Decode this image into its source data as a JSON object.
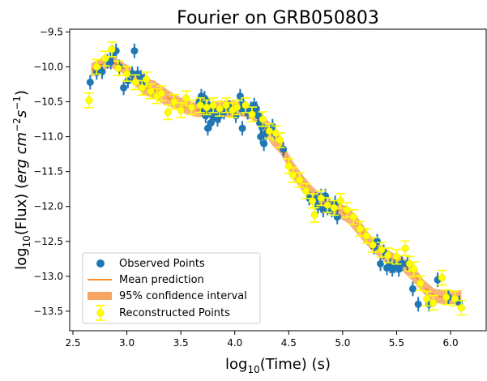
{
  "chart_data": {
    "type": "scatter",
    "title": "Fourier on GRB050803",
    "xlabel": {
      "prefix": "log",
      "sub": "10",
      "rest": "(Time) (s)"
    },
    "ylabel": {
      "prefix": "log",
      "sub": "10",
      "middle": "(Flux) (",
      "italic": "erg cm",
      "sup1": "−2",
      "s": "s",
      "sup2": "−1",
      "close": ")"
    },
    "xlim": [
      2.47,
      6.33
    ],
    "ylim": [
      -13.78,
      -9.46
    ],
    "xticks": [
      2.5,
      3.0,
      3.5,
      4.0,
      4.5,
      5.0,
      5.5,
      6.0
    ],
    "xtick_labels": [
      "2.5",
      "3.0",
      "3.5",
      "4.0",
      "4.5",
      "5.0",
      "5.5",
      "6.0"
    ],
    "yticks": [
      -9.5,
      -10.0,
      -10.5,
      -11.0,
      -11.5,
      -12.0,
      -12.5,
      -13.0,
      -13.5
    ],
    "ytick_labels": [
      "−9.5",
      "−10.0",
      "−10.5",
      "−11.0",
      "−11.5",
      "−12.0",
      "−12.5",
      "−13.0",
      "−13.5"
    ],
    "grid": false,
    "legend_position": "lower-left",
    "colors": {
      "observed": "#1f77b4",
      "mean": "#ff7f0e",
      "ci": "#f5a562",
      "reconstructed": "#ffff00",
      "recon_edge": "#d8d800"
    },
    "series": [
      {
        "name": "Observed Points",
        "points": [
          [
            2.66,
            -10.22
          ],
          [
            2.72,
            -10.08
          ],
          [
            2.77,
            -10.07
          ],
          [
            2.82,
            -9.92
          ],
          [
            2.85,
            -9.93
          ],
          [
            2.87,
            -9.8
          ],
          [
            2.9,
            -9.77
          ],
          [
            2.93,
            -10.0
          ],
          [
            2.97,
            -10.3
          ],
          [
            3.01,
            -10.2
          ],
          [
            3.05,
            -10.1
          ],
          [
            3.07,
            -9.77
          ],
          [
            3.1,
            -10.1
          ],
          [
            3.13,
            -10.15
          ],
          [
            3.16,
            -10.2
          ],
          [
            3.67,
            -10.5
          ],
          [
            3.69,
            -10.42
          ],
          [
            3.7,
            -10.6
          ],
          [
            3.71,
            -10.58
          ],
          [
            3.72,
            -10.45
          ],
          [
            3.73,
            -10.7
          ],
          [
            3.74,
            -10.65
          ],
          [
            3.75,
            -10.88
          ],
          [
            3.76,
            -10.55
          ],
          [
            3.77,
            -10.62
          ],
          [
            3.78,
            -10.8
          ],
          [
            3.79,
            -10.68
          ],
          [
            3.8,
            -10.72
          ],
          [
            3.82,
            -10.66
          ],
          [
            3.84,
            -10.75
          ],
          [
            3.86,
            -10.7
          ],
          [
            3.9,
            -10.65
          ],
          [
            3.95,
            -10.58
          ],
          [
            4.01,
            -10.7
          ],
          [
            4.05,
            -10.42
          ],
          [
            4.06,
            -10.6
          ],
          [
            4.07,
            -10.88
          ],
          [
            4.08,
            -10.55
          ],
          [
            4.1,
            -10.6
          ],
          [
            4.12,
            -10.65
          ],
          [
            4.15,
            -10.6
          ],
          [
            4.18,
            -10.55
          ],
          [
            4.2,
            -10.6
          ],
          [
            4.22,
            -10.7
          ],
          [
            4.23,
            -10.8
          ],
          [
            4.24,
            -11.0
          ],
          [
            4.25,
            -10.85
          ],
          [
            4.27,
            -11.1
          ],
          [
            4.29,
            -10.95
          ],
          [
            4.35,
            -10.85
          ],
          [
            4.37,
            -10.95
          ],
          [
            4.45,
            -11.18
          ],
          [
            4.69,
            -11.88
          ],
          [
            4.75,
            -11.9
          ],
          [
            4.77,
            -12.0
          ],
          [
            4.8,
            -11.85
          ],
          [
            4.82,
            -12.05
          ],
          [
            4.84,
            -11.85
          ],
          [
            4.86,
            -12.02
          ],
          [
            4.88,
            -12.0
          ],
          [
            4.9,
            -12.05
          ],
          [
            4.93,
            -11.95
          ],
          [
            4.95,
            -12.15
          ],
          [
            5.29,
            -12.58
          ],
          [
            5.32,
            -12.5
          ],
          [
            5.35,
            -12.82
          ],
          [
            5.38,
            -12.65
          ],
          [
            5.41,
            -12.88
          ],
          [
            5.44,
            -12.85
          ],
          [
            5.46,
            -12.9
          ],
          [
            5.48,
            -12.85
          ],
          [
            5.52,
            -12.9
          ],
          [
            5.55,
            -12.82
          ],
          [
            5.6,
            -12.82
          ],
          [
            5.65,
            -13.18
          ],
          [
            5.7,
            -13.4
          ],
          [
            5.8,
            -13.4
          ],
          [
            5.88,
            -13.05
          ],
          [
            5.98,
            -13.3
          ],
          [
            6.08,
            -13.38
          ]
        ]
      },
      {
        "name": "Mean prediction",
        "points": [
          [
            2.67,
            -10.05
          ],
          [
            2.75,
            -9.97
          ],
          [
            2.85,
            -9.92
          ],
          [
            2.95,
            -10.0
          ],
          [
            3.05,
            -10.12
          ],
          [
            3.15,
            -10.28
          ],
          [
            3.25,
            -10.32
          ],
          [
            3.35,
            -10.42
          ],
          [
            3.45,
            -10.5
          ],
          [
            3.55,
            -10.58
          ],
          [
            3.65,
            -10.62
          ],
          [
            3.75,
            -10.62
          ],
          [
            3.85,
            -10.6
          ],
          [
            3.95,
            -10.6
          ],
          [
            4.05,
            -10.6
          ],
          [
            4.15,
            -10.65
          ],
          [
            4.22,
            -10.72
          ],
          [
            4.28,
            -10.85
          ],
          [
            4.35,
            -10.98
          ],
          [
            4.42,
            -11.12
          ],
          [
            4.48,
            -11.3
          ],
          [
            4.55,
            -11.5
          ],
          [
            4.62,
            -11.65
          ],
          [
            4.7,
            -11.8
          ],
          [
            4.78,
            -11.9
          ],
          [
            4.86,
            -11.98
          ],
          [
            4.95,
            -12.05
          ],
          [
            5.05,
            -12.12
          ],
          [
            5.15,
            -12.3
          ],
          [
            5.25,
            -12.5
          ],
          [
            5.35,
            -12.65
          ],
          [
            5.45,
            -12.75
          ],
          [
            5.55,
            -12.82
          ],
          [
            5.65,
            -12.95
          ],
          [
            5.75,
            -13.15
          ],
          [
            5.85,
            -13.28
          ],
          [
            5.95,
            -13.3
          ],
          [
            6.05,
            -13.3
          ],
          [
            6.1,
            -13.3
          ]
        ]
      },
      {
        "name": "95% confidence interval",
        "halfwidth": [
          0.1,
          0.09,
          0.09,
          0.08,
          0.1,
          0.12,
          0.13,
          0.12,
          0.1,
          0.1,
          0.1,
          0.1,
          0.12,
          0.12,
          0.1,
          0.1,
          0.1,
          0.12,
          0.15,
          0.12,
          0.1,
          0.12,
          0.12,
          0.12,
          0.1,
          0.1,
          0.1,
          0.12,
          0.12,
          0.1,
          0.1,
          0.1,
          0.1,
          0.12,
          0.1,
          0.1,
          0.1,
          0.1,
          0.1
        ]
      },
      {
        "name": "Reconstructed Points",
        "points": [
          [
            2.65,
            -10.48
          ],
          [
            2.72,
            -10.0
          ],
          [
            2.8,
            -9.88
          ],
          [
            2.86,
            -9.75
          ],
          [
            2.92,
            -10.02
          ],
          [
            3.0,
            -10.1
          ],
          [
            3.08,
            -10.22
          ],
          [
            3.14,
            -10.3
          ],
          [
            3.18,
            -10.18
          ],
          [
            3.22,
            -10.35
          ],
          [
            3.28,
            -10.42
          ],
          [
            3.32,
            -10.38
          ],
          [
            3.38,
            -10.65
          ],
          [
            3.44,
            -10.5
          ],
          [
            3.5,
            -10.62
          ],
          [
            3.55,
            -10.45
          ],
          [
            3.6,
            -10.58
          ],
          [
            3.68,
            -10.55
          ],
          [
            3.74,
            -10.58
          ],
          [
            3.8,
            -10.55
          ],
          [
            3.86,
            -10.6
          ],
          [
            3.92,
            -10.55
          ],
          [
            3.98,
            -10.62
          ],
          [
            4.02,
            -10.58
          ],
          [
            4.1,
            -10.55
          ],
          [
            4.16,
            -10.68
          ],
          [
            4.26,
            -10.75
          ],
          [
            4.32,
            -10.92
          ],
          [
            4.38,
            -10.95
          ],
          [
            4.42,
            -11.05
          ],
          [
            4.5,
            -11.42
          ],
          [
            4.54,
            -11.55
          ],
          [
            4.6,
            -11.62
          ],
          [
            4.66,
            -11.78
          ],
          [
            4.72,
            -11.92
          ],
          [
            4.74,
            -12.12
          ],
          [
            4.8,
            -11.88
          ],
          [
            4.86,
            -11.98
          ],
          [
            4.92,
            -12.02
          ],
          [
            4.98,
            -11.92
          ],
          [
            5.04,
            -12.05
          ],
          [
            5.1,
            -12.15
          ],
          [
            5.16,
            -12.32
          ],
          [
            5.22,
            -12.42
          ],
          [
            5.28,
            -12.55
          ],
          [
            5.36,
            -12.62
          ],
          [
            5.42,
            -12.7
          ],
          [
            5.5,
            -12.72
          ],
          [
            5.58,
            -12.6
          ],
          [
            5.62,
            -12.82
          ],
          [
            5.66,
            -12.9
          ],
          [
            5.72,
            -13.1
          ],
          [
            5.78,
            -13.32
          ],
          [
            5.84,
            -13.38
          ],
          [
            5.92,
            -13.02
          ],
          [
            5.96,
            -13.3
          ],
          [
            6.04,
            -13.32
          ],
          [
            6.1,
            -13.45
          ]
        ]
      }
    ]
  }
}
